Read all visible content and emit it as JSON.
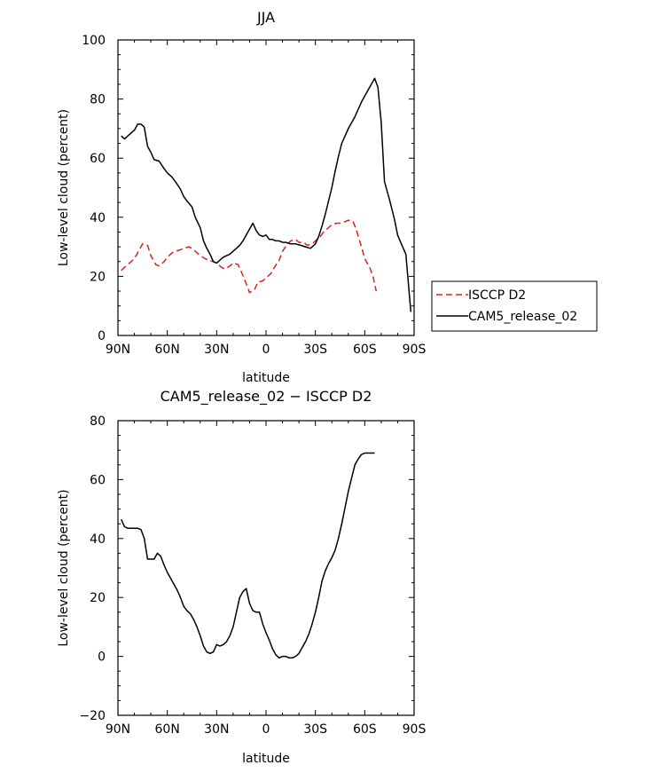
{
  "chart_data": [
    {
      "type": "line",
      "title": "JJA",
      "xlabel": "latitude",
      "ylabel": "Low-level cloud (percent)",
      "xlim": [
        -90,
        90
      ],
      "ylim": [
        0,
        100
      ],
      "x_ticks": [
        -90,
        -60,
        -30,
        0,
        30,
        60,
        90
      ],
      "x_tick_labels": [
        "90N",
        "60N",
        "30N",
        "0",
        "30S",
        "60S",
        "90S"
      ],
      "y_ticks": [
        0,
        20,
        40,
        60,
        80,
        100
      ],
      "y_tick_labels": [
        "0",
        "20",
        "40",
        "60",
        "80",
        "100"
      ],
      "legend_position": "right",
      "series": [
        {
          "name": "ISCCP D2",
          "color": "#e0201b",
          "dashed": true,
          "x": [
            -88,
            -85,
            -82,
            -80,
            -77,
            -75,
            -72,
            -70,
            -67,
            -65,
            -62,
            -60,
            -57,
            -55,
            -52,
            -50,
            -47,
            -45,
            -42,
            -40,
            -37,
            -35,
            -32,
            -30,
            -27,
            -25,
            -22,
            -20,
            -17,
            -15,
            -12,
            -10,
            -7,
            -5,
            -2,
            0,
            3,
            5,
            8,
            10,
            13,
            15,
            18,
            20,
            23,
            25,
            28,
            30,
            33,
            35,
            38,
            40,
            43,
            45,
            48,
            50,
            53,
            55,
            58,
            60,
            63,
            65,
            67
          ],
          "y": [
            22,
            23.5,
            25,
            26,
            29,
            31,
            30.5,
            27,
            24,
            23.5,
            25,
            26.5,
            28,
            28.5,
            29,
            29.5,
            30,
            29.5,
            28,
            27,
            26,
            25.5,
            25,
            24.5,
            23,
            22.5,
            23.5,
            24.5,
            24,
            21.5,
            17.5,
            14.5,
            15.5,
            18,
            18.5,
            19.5,
            21,
            23,
            25.5,
            28.5,
            31,
            32,
            32.5,
            31.5,
            31.5,
            30.5,
            31,
            32,
            33.5,
            35,
            36.5,
            37.5,
            38,
            38,
            38.5,
            39,
            38.5,
            35.5,
            30,
            26,
            23,
            20,
            15
          ]
        },
        {
          "name": "CAM5_release_02",
          "color": "#000000",
          "dashed": false,
          "x": [
            -88,
            -86,
            -84,
            -82,
            -80,
            -78,
            -76,
            -74,
            -72,
            -70,
            -68,
            -65,
            -62,
            -60,
            -57,
            -55,
            -52,
            -50,
            -48,
            -45,
            -43,
            -40,
            -38,
            -36,
            -34,
            -32,
            -30,
            -28,
            -26,
            -24,
            -22,
            -20,
            -18,
            -16,
            -14,
            -12,
            -10,
            -8,
            -6,
            -4,
            -2,
            0,
            2,
            4,
            6,
            8,
            10,
            12,
            15,
            18,
            21,
            24,
            27,
            30,
            32,
            34,
            36,
            38,
            40,
            42,
            44,
            46,
            48,
            50,
            52,
            54,
            56,
            58,
            60,
            62,
            64,
            66,
            68,
            70,
            72,
            75,
            78,
            80,
            83,
            85,
            88
          ],
          "y": [
            67.5,
            66.5,
            67.5,
            68.5,
            69.5,
            71.5,
            71.5,
            70.5,
            64,
            62,
            59.5,
            59,
            56.5,
            55,
            53.5,
            52,
            49.5,
            47,
            45.5,
            43.5,
            40,
            36.5,
            32,
            29.5,
            27.5,
            25,
            24.5,
            25.5,
            26.5,
            27,
            27.5,
            28.5,
            29.5,
            30.5,
            32,
            34,
            36,
            38,
            35.5,
            34,
            33.5,
            34,
            32.5,
            32.5,
            32,
            32,
            31.5,
            31.5,
            31,
            31,
            30.5,
            30,
            29.5,
            31,
            33.5,
            37,
            41,
            45.5,
            50,
            55.5,
            60.5,
            65,
            67.5,
            70,
            72,
            74,
            76.5,
            79,
            81,
            83,
            85,
            87,
            84,
            72,
            52,
            46,
            39.5,
            34,
            30,
            27.5,
            8
          ]
        }
      ]
    },
    {
      "type": "line",
      "title": "CAM5_release_02 − ISCCP D2",
      "xlabel": "latitude",
      "ylabel": "Low-level cloud (percent)",
      "xlim": [
        -90,
        90
      ],
      "ylim": [
        -20,
        80
      ],
      "x_ticks": [
        -90,
        -60,
        -30,
        0,
        30,
        60,
        90
      ],
      "x_tick_labels": [
        "90N",
        "60N",
        "30N",
        "0",
        "30S",
        "60S",
        "90S"
      ],
      "y_ticks": [
        -20,
        0,
        20,
        40,
        60,
        80
      ],
      "y_tick_labels": [
        "−20",
        "0",
        "20",
        "40",
        "60",
        "80"
      ],
      "series": [
        {
          "name": "CAM5_release_02 − ISCCP D2",
          "color": "#000000",
          "dashed": false,
          "x": [
            -88,
            -86,
            -84,
            -82,
            -80,
            -78,
            -76,
            -74,
            -72,
            -70,
            -68,
            -66,
            -64,
            -62,
            -60,
            -58,
            -56,
            -54,
            -52,
            -50,
            -48,
            -46,
            -44,
            -42,
            -40,
            -38,
            -36,
            -34,
            -32,
            -30,
            -28,
            -26,
            -24,
            -22,
            -20,
            -18,
            -16,
            -14,
            -12,
            -10,
            -8,
            -6,
            -4,
            -2,
            0,
            2,
            4,
            6,
            8,
            10,
            12,
            14,
            16,
            18,
            20,
            22,
            24,
            26,
            28,
            30,
            32,
            34,
            36,
            38,
            40,
            42,
            44,
            46,
            48,
            50,
            52,
            54,
            56,
            58,
            60,
            62,
            64,
            66
          ],
          "y": [
            46.5,
            44,
            43.5,
            43.5,
            43.5,
            43.5,
            43,
            40,
            33,
            33,
            33,
            35,
            34,
            31,
            28.5,
            26.5,
            24.5,
            22.5,
            20,
            17,
            15.5,
            14.5,
            12.5,
            10,
            7,
            3.5,
            1.5,
            1,
            1.5,
            4,
            3.5,
            4,
            5,
            7,
            10,
            15,
            20,
            22,
            23,
            18,
            15.5,
            15,
            15,
            11,
            8,
            5.5,
            2.5,
            0.5,
            -0.5,
            0,
            0,
            -0.5,
            -0.5,
            0,
            1,
            3,
            5,
            7.5,
            11,
            15,
            20,
            25.5,
            29,
            31.5,
            33.5,
            36,
            40,
            45,
            50.5,
            56,
            60.5,
            65,
            67,
            68.5,
            69,
            69,
            69,
            69
          ]
        }
      ]
    }
  ]
}
